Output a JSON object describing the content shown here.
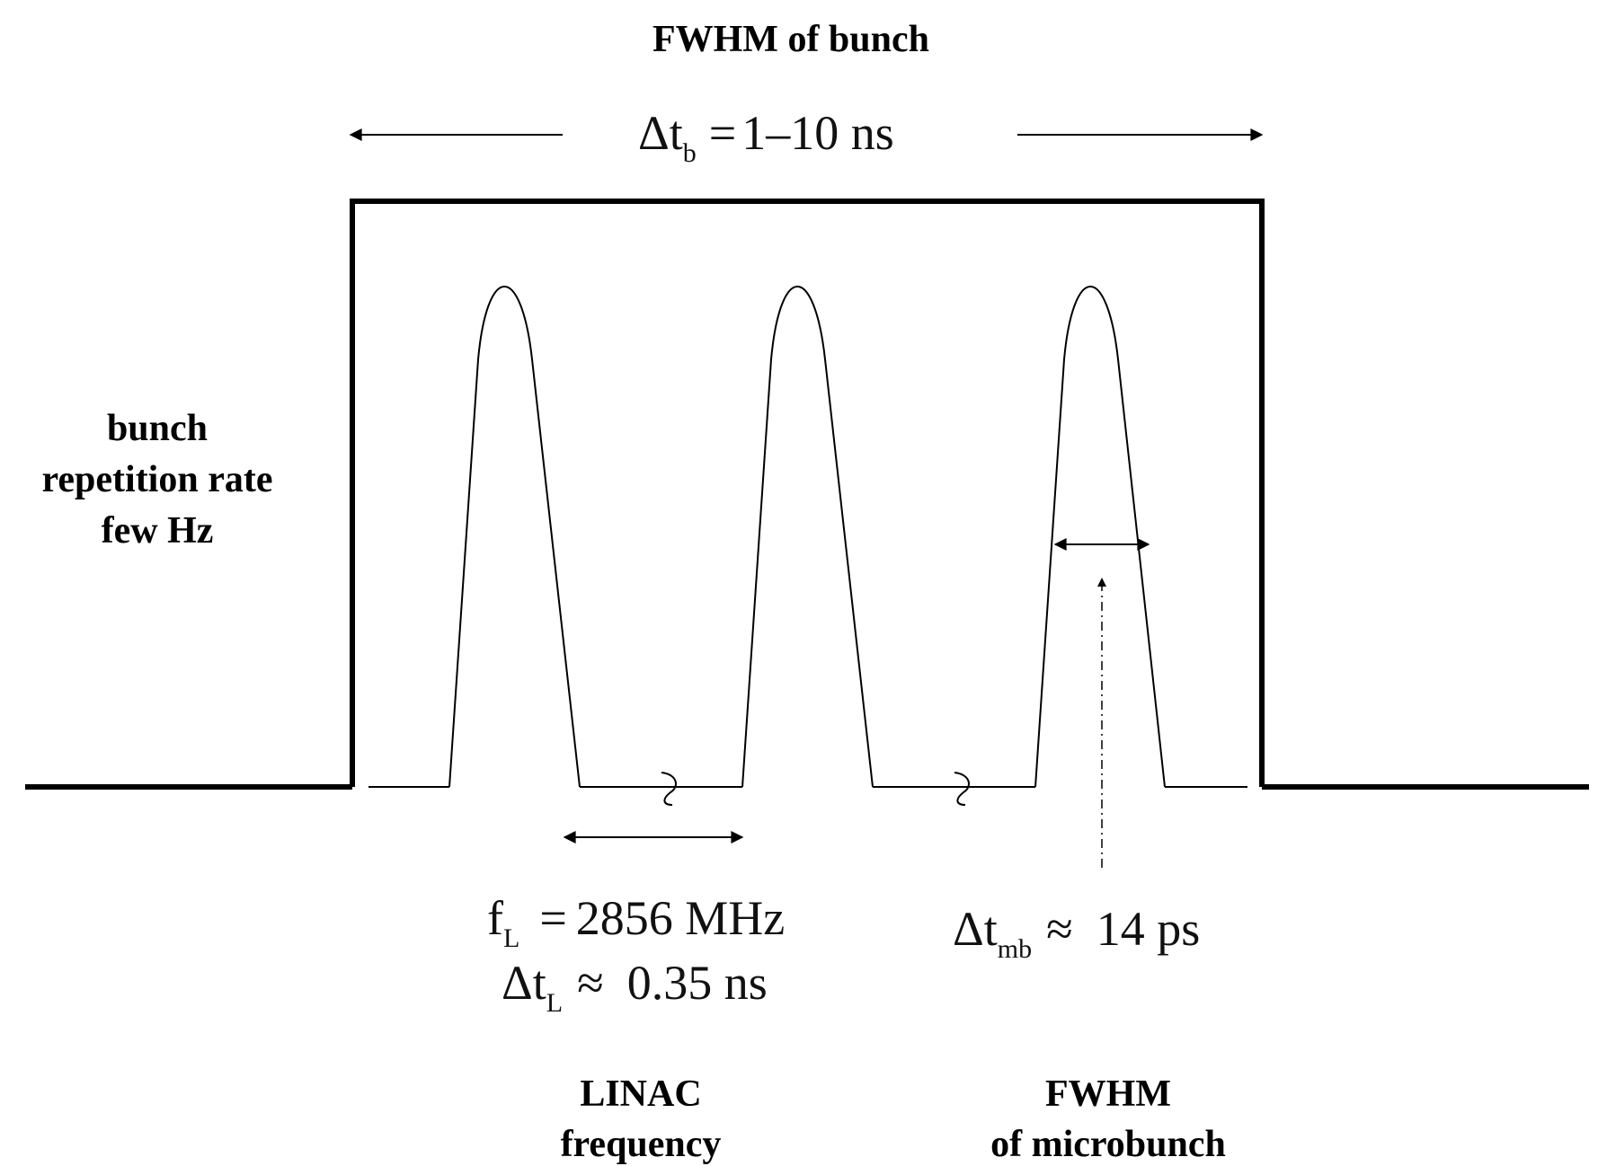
{
  "top_label": "FWHM of bunch",
  "bunch_width": {
    "symbol": "Δt",
    "subscript": "b",
    "relation": "=",
    "value": "1–10 ns"
  },
  "repetition_label": {
    "line1": "bunch",
    "line2": "repetition rate",
    "line3": "few Hz"
  },
  "linac": {
    "f_symbol": "f",
    "f_subscript": "L",
    "f_relation": "=",
    "f_value": "2856 MHz",
    "dt_symbol": "Δt",
    "dt_subscript": "L",
    "dt_relation": "≈",
    "dt_value": "0.35 ns",
    "caption_line1": "LINAC",
    "caption_line2": "frequency"
  },
  "microbunch": {
    "dt_symbol": "Δt",
    "dt_subscript": "mb",
    "dt_relation": "≈",
    "dt_value": "14 ps",
    "caption_line1": "FWHM",
    "caption_line2": "of microbunch"
  }
}
